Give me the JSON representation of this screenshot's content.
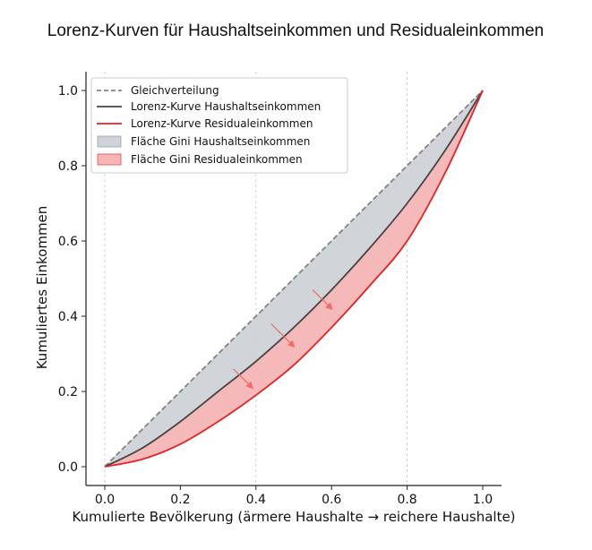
{
  "chart_data": {
    "type": "area",
    "title": "Lorenz-Kurven für Haushaltseinkommen und Residualeinkommen",
    "xlabel": "Kumulierte Bevölkerung (ärmere Haushalte → reichere Haushalte)",
    "ylabel": "Kumuliertes Einkommen",
    "xlim": [
      -0.05,
      1.05
    ],
    "ylim": [
      -0.05,
      1.05
    ],
    "xticks": [
      "0.0",
      "0.2",
      "0.4",
      "0.6",
      "0.8",
      "1.0"
    ],
    "yticks": [
      "0.0",
      "0.2",
      "0.4",
      "0.6",
      "0.8",
      "1.0"
    ],
    "vertical_gridlines_at": [
      0,
      0.4,
      0.8
    ],
    "legend_position": "upper-left",
    "series": [
      {
        "name": "Gleichverteilung",
        "style": "dashed",
        "color": "#888080",
        "x": [
          0.0,
          0.2,
          0.4,
          0.6,
          0.8,
          1.0
        ],
        "y": [
          0.0,
          0.2,
          0.4,
          0.6,
          0.8,
          1.0
        ]
      },
      {
        "name": "Lorenz-Kurve Haushaltseinkommen",
        "style": "solid",
        "color": "#444444",
        "x": [
          0.0,
          0.1,
          0.2,
          0.3,
          0.4,
          0.5,
          0.6,
          0.7,
          0.8,
          0.9,
          1.0
        ],
        "y": [
          0.0,
          0.05,
          0.12,
          0.2,
          0.28,
          0.37,
          0.47,
          0.58,
          0.7,
          0.84,
          1.0
        ]
      },
      {
        "name": "Lorenz-Kurve Residualeinkommen",
        "style": "solid",
        "color": "#e52222",
        "x": [
          0.0,
          0.1,
          0.2,
          0.3,
          0.4,
          0.5,
          0.6,
          0.7,
          0.8,
          0.9,
          1.0
        ],
        "y": [
          0.0,
          0.02,
          0.06,
          0.12,
          0.19,
          0.27,
          0.37,
          0.48,
          0.6,
          0.78,
          1.0
        ]
      }
    ],
    "areas": [
      {
        "name": "Fläche Gini Haushaltseinkommen",
        "between": [
          "Gleichverteilung",
          "Lorenz-Kurve Haushaltseinkommen"
        ],
        "color": "#cfd2d6"
      },
      {
        "name": "Fläche Gini Residualeinkommen",
        "between": [
          "Lorenz-Kurve Haushaltseinkommen",
          "Lorenz-Kurve Residualeinkommen"
        ],
        "color": "#f5b5b5"
      }
    ],
    "arrows": [
      {
        "from": [
          0.34,
          0.26
        ],
        "to": [
          0.39,
          0.21
        ]
      },
      {
        "from": [
          0.44,
          0.38
        ],
        "to": [
          0.5,
          0.32
        ]
      },
      {
        "from": [
          0.55,
          0.47
        ],
        "to": [
          0.6,
          0.42
        ]
      }
    ]
  }
}
